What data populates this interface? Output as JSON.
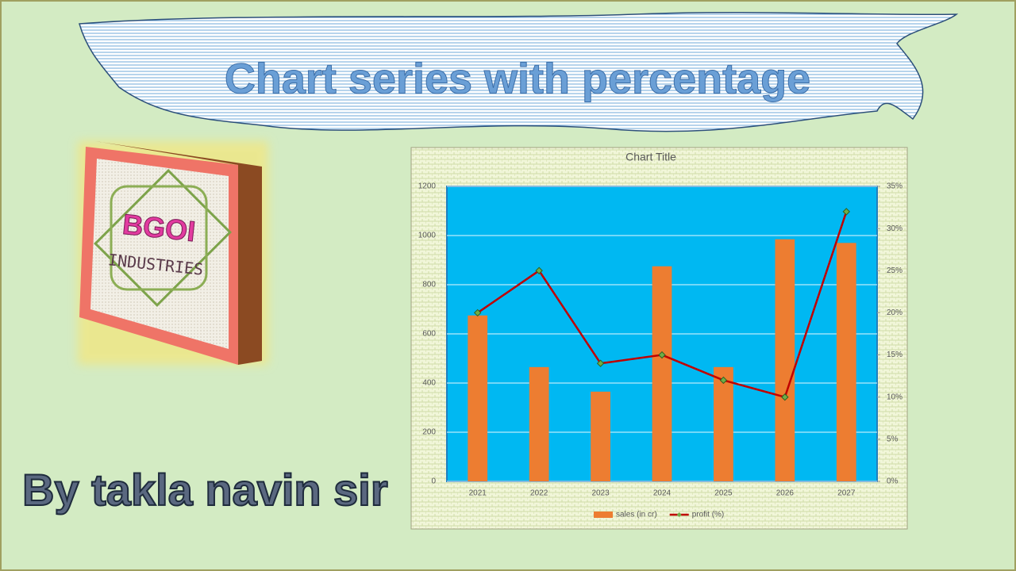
{
  "slide": {
    "title": "Chart series with percentage",
    "author": "By takla navin sir",
    "logo_line1": "BGOI",
    "logo_line2": "INDUSTRIES"
  },
  "chart_data": {
    "type": "bar-line",
    "title": "Chart Title",
    "categories": [
      "2021",
      "2022",
      "2023",
      "2024",
      "2025",
      "2026",
      "2027"
    ],
    "series": [
      {
        "name": "sales (in cr)",
        "type": "bar",
        "color": "#ed7d31",
        "values": [
          675,
          465,
          365,
          875,
          465,
          985,
          970
        ]
      },
      {
        "name": "profit (%)",
        "type": "line",
        "axis": "y2",
        "color": "#c00000",
        "marker_color": "#70ad47",
        "values": [
          20,
          25,
          14,
          15,
          12,
          10,
          32
        ]
      }
    ],
    "ylim": [
      0,
      1200
    ],
    "yticks": [
      0,
      200,
      400,
      600,
      800,
      1000,
      1200
    ],
    "y2lim": [
      0,
      35
    ],
    "y2ticks": [
      {
        "value": 0,
        "label": "0%"
      },
      {
        "value": 5,
        "label": "5%"
      },
      {
        "value": 10,
        "label": "10%"
      },
      {
        "value": 15,
        "label": "15%"
      },
      {
        "value": 20,
        "label": "20%"
      },
      {
        "value": 25,
        "label": "25%"
      },
      {
        "value": 30,
        "label": "30%"
      },
      {
        "value": 35,
        "label": "35%"
      }
    ],
    "grid": true,
    "plot_background": "#00b8f2",
    "legend": "bottom"
  }
}
